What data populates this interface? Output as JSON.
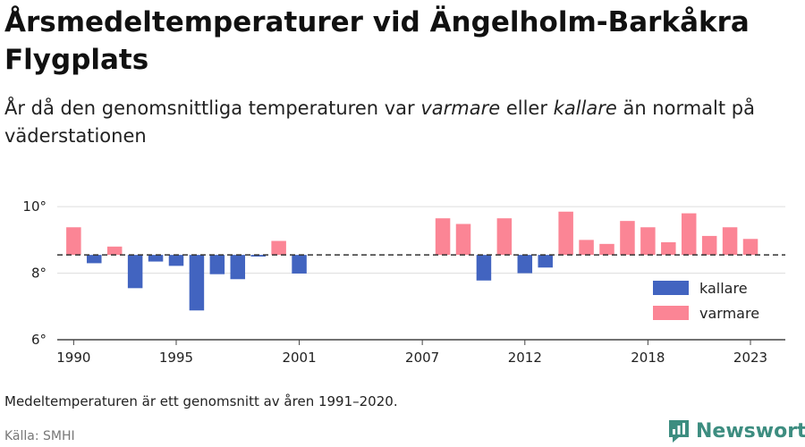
{
  "title": "Årsmedeltemperaturer vid Ängelholm-Barkåkra Flygplats",
  "subtitle": {
    "before": "År då den genomsnittliga temperaturen var ",
    "warm_word": "varmare",
    "middle": " eller ",
    "cold_word": "kallare",
    "after": " än normalt på väderstationen"
  },
  "note": "Medeltemperaturen är ett genomsnitt av åren 1991–2020.",
  "source": "Källa: SMHI",
  "brand": "Newsworthy",
  "colors": {
    "warmer": "#fb8595",
    "colder": "#4264c0",
    "baseline": "#333333",
    "grid": "#dddddd"
  },
  "chart_data": {
    "type": "bar",
    "title": "Årsmedeltemperaturer vid Ängelholm-Barkåkra Flygplats",
    "baseline": 8.55,
    "ylim": [
      6,
      10.3
    ],
    "yticks": [
      {
        "value": 10,
        "label": "10°"
      },
      {
        "value": 8,
        "label": "8°"
      },
      {
        "value": 6,
        "label": "6°"
      }
    ],
    "xlim": [
      1989.2,
      2024.7
    ],
    "xticks": [
      1990,
      1995,
      2001,
      2007,
      2012,
      2018,
      2023
    ],
    "grid": true,
    "legend_position": "right",
    "legend": [
      {
        "key": "colder",
        "label": "kallare"
      },
      {
        "key": "warmer",
        "label": "varmare"
      }
    ],
    "x": [
      1990,
      1991,
      1992,
      1993,
      1994,
      1995,
      1996,
      1997,
      1998,
      1999,
      2000,
      2001,
      2008,
      2009,
      2010,
      2011,
      2012,
      2013,
      2014,
      2015,
      2016,
      2017,
      2018,
      2019,
      2020,
      2021,
      2022,
      2023
    ],
    "values": [
      9.38,
      8.3,
      8.8,
      7.55,
      8.35,
      8.22,
      6.88,
      7.97,
      7.82,
      8.5,
      8.97,
      7.99,
      9.65,
      9.48,
      7.78,
      9.65,
      8.0,
      8.17,
      9.85,
      9.0,
      8.88,
      9.57,
      9.38,
      8.93,
      9.8,
      9.12,
      9.38,
      9.03
    ]
  }
}
